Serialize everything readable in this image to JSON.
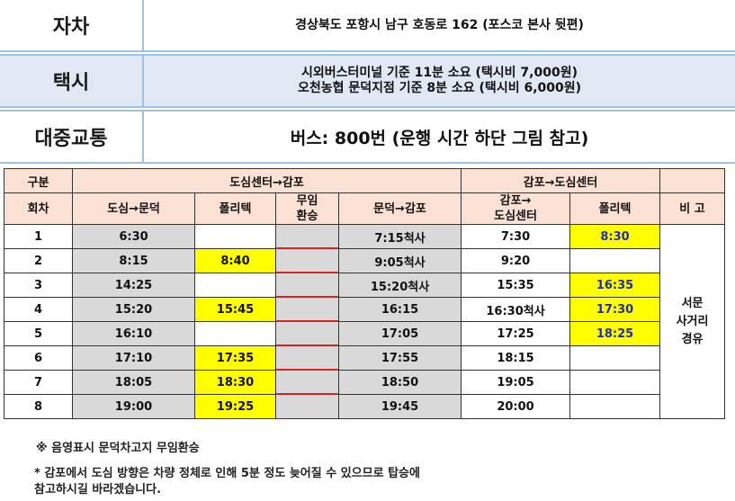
{
  "info": {
    "car": {
      "label": "자차",
      "value": "경상북도 포항시 남구 호동로 162 (포스코 본사 뒷편)"
    },
    "taxi": {
      "label": "택시",
      "line1": "시외버스터미널 기준 11분 소요 (택시비 7,000원)",
      "line2": "오천농협 문덕지점 기준 8분 소요 (택시비 6,000원)"
    },
    "bus": {
      "label": "대중교통",
      "value": "버스: 800번 (운행 시간 하단 그림 참고)"
    }
  },
  "timetable": {
    "header": {
      "category": "구분",
      "to_gampo": "도심센터→감포",
      "to_center": "감포→도심센터",
      "remarks_blank": ""
    },
    "subheader": {
      "round": "회차",
      "center_mundeok": "도심→문덕",
      "poly1": "폴리텍",
      "free_transfer_1": "무임",
      "free_transfer_2": "환승",
      "mundeok_gampo": "문덕→감포",
      "gampo_center_1": "감포→",
      "gampo_center_2": "도심센터",
      "poly2": "폴리텍",
      "remarks": "비 고"
    },
    "rows": [
      {
        "n": "1",
        "a": "6:30",
        "b": "",
        "c": "7:15척사",
        "d": "7:30",
        "e": "8:30"
      },
      {
        "n": "2",
        "a": "8:15",
        "b": "8:40",
        "c": "9:05척사",
        "d": "9:20",
        "e": ""
      },
      {
        "n": "3",
        "a": "14:25",
        "b": "",
        "c": "15:20척사",
        "d": "15:35",
        "e": "16:35"
      },
      {
        "n": "4",
        "a": "15:20",
        "b": "15:45",
        "c": "16:15",
        "d": "16:30척사",
        "e": "17:30"
      },
      {
        "n": "5",
        "a": "16:10",
        "b": "",
        "c": "17:05",
        "d": "17:25",
        "e": "18:25"
      },
      {
        "n": "6",
        "a": "17:10",
        "b": "17:35",
        "c": "17:55",
        "d": "18:15",
        "e": ""
      },
      {
        "n": "7",
        "a": "18:05",
        "b": "18:30",
        "c": "18:50",
        "d": "19:05",
        "e": ""
      },
      {
        "n": "8",
        "a": "19:00",
        "b": "19:25",
        "c": "19:45",
        "d": "20:00",
        "e": ""
      }
    ],
    "remark_lines": [
      "서문",
      "사거리",
      "경유"
    ]
  },
  "notes": {
    "note1": "※ 음영표시 문덕차고지 무임환승",
    "note2_line1": "* 감포에서 도심 방향은 차량 정체로 인해 5분 정도 늦어질 수 있으므로 탑승에",
    "note2_line2": "참고하시길 바라겠습니다."
  },
  "colors": {
    "border_blue": "#9fc2e4",
    "taxi_bg": "#dfe8f3",
    "header_pink": "#fbe1d4",
    "highlight_yellow": "#ffff00",
    "transfer_red": "#d62424",
    "blue_text": "#1d2fb5"
  }
}
